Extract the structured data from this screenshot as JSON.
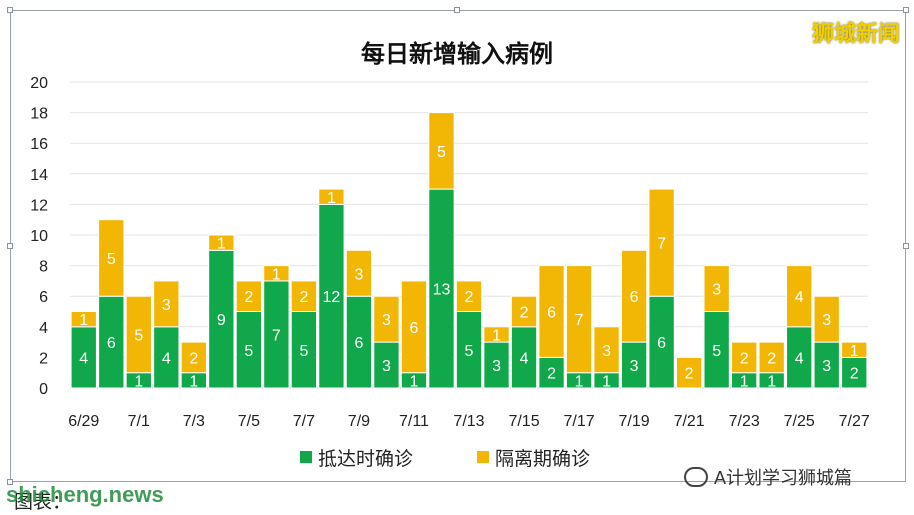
{
  "title": "每日新增输入病例",
  "brand": "狮城新闻",
  "caption": "图表：",
  "watermark": "shicheng.news",
  "wechat_label": "A计划学习狮城篇",
  "colors": {
    "arrival": "#10a84a",
    "quarantine": "#f2b705"
  },
  "chart_data": {
    "type": "bar",
    "stacked": true,
    "title": "每日新增输入病例",
    "categories": [
      "6/29",
      "6/30",
      "7/1",
      "7/2",
      "7/3",
      "7/4",
      "7/5",
      "7/6",
      "7/7",
      "7/8",
      "7/9",
      "7/10",
      "7/11",
      "7/12",
      "7/13",
      "7/14",
      "7/15",
      "7/16",
      "7/17",
      "7/18",
      "7/19",
      "7/20",
      "7/21",
      "7/22",
      "7/23",
      "7/24",
      "7/25",
      "7/26",
      "7/27"
    ],
    "tick_labels": [
      "6/29",
      "",
      "7/1",
      "",
      "7/3",
      "",
      "7/5",
      "",
      "7/7",
      "",
      "7/9",
      "",
      "7/11",
      "",
      "7/13",
      "",
      "7/15",
      "",
      "7/17",
      "",
      "7/19",
      "",
      "7/21",
      "",
      "7/23",
      "",
      "7/25",
      "",
      "7/27"
    ],
    "series": [
      {
        "name": "抵达时确诊",
        "color": "#10a84a",
        "values": [
          4,
          6,
          1,
          4,
          1,
          9,
          5,
          7,
          5,
          12,
          6,
          3,
          1,
          13,
          5,
          3,
          4,
          2,
          1,
          1,
          3,
          6,
          0,
          5,
          1,
          1,
          4,
          3,
          2
        ]
      },
      {
        "name": "隔离期确诊",
        "color": "#f2b705",
        "values": [
          1,
          5,
          5,
          3,
          2,
          1,
          2,
          1,
          2,
          1,
          3,
          3,
          6,
          5,
          2,
          1,
          2,
          6,
          7,
          3,
          6,
          7,
          2,
          3,
          2,
          2,
          4,
          3,
          1
        ]
      }
    ],
    "yticks": [
      0,
      2,
      4,
      6,
      8,
      10,
      12,
      14,
      16,
      18,
      20
    ],
    "ylim": [
      0,
      20
    ],
    "grid": true,
    "legend": "bottom"
  }
}
